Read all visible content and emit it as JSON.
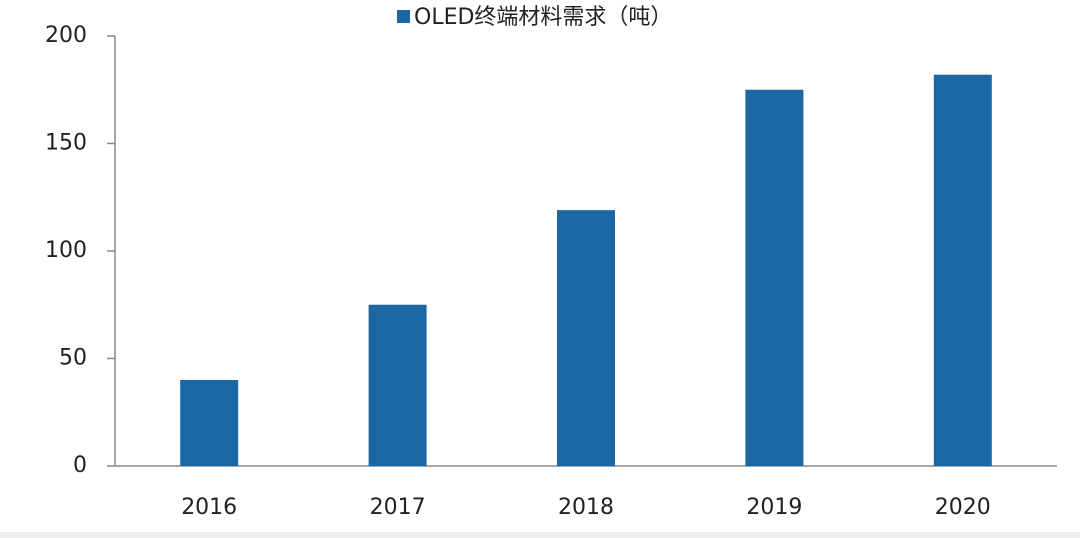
{
  "chart_data": {
    "type": "bar",
    "categories": [
      "2016",
      "2017",
      "2018",
      "2019",
      "2020"
    ],
    "series": [
      {
        "name": "OLED终端材料需求（吨）",
        "color": "#1a67a3",
        "values": [
          40,
          75,
          119,
          175,
          182
        ]
      }
    ],
    "ylim": [
      0,
      200
    ],
    "yticks": [
      0,
      50,
      100,
      150,
      200
    ],
    "grid": false,
    "legend": "top"
  }
}
